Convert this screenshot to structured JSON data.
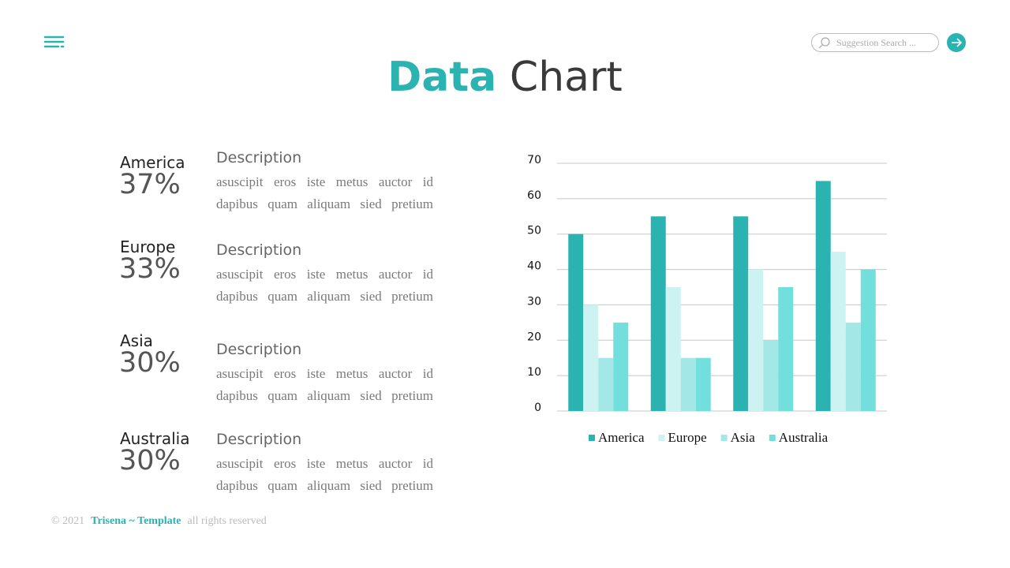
{
  "header": {
    "title_accent": "Data",
    "title_rest": "Chart",
    "search_placeholder": "Suggestion Search ..."
  },
  "stats": [
    {
      "name": "America",
      "value": "37%",
      "heading": "Description",
      "text": "asuscipit eros iste metus auctor id dapibus quam aliquam sied pretium"
    },
    {
      "name": "Europe",
      "value": "33%",
      "heading": "Description",
      "text": "asuscipit eros iste metus auctor id dapibus quam aliquam sied pretium"
    },
    {
      "name": "Asia",
      "value": "30%",
      "heading": "Description",
      "text": "asuscipit eros iste metus auctor id dapibus quam aliquam sied pretium"
    },
    {
      "name": "Australia",
      "value": "30%",
      "heading": "Description",
      "text": "asuscipit eros iste metus auctor id dapibus quam aliquam sied pretium"
    }
  ],
  "chart_data": {
    "type": "bar",
    "categories": [
      null,
      null,
      null,
      null
    ],
    "series": [
      {
        "name": "America",
        "color": "#2ab3b0",
        "values": [
          50,
          55,
          55,
          65
        ]
      },
      {
        "name": "Europe",
        "color": "#cdf2f2",
        "values": [
          30,
          35,
          40,
          45
        ]
      },
      {
        "name": "Asia",
        "color": "#a3e8e6",
        "values": [
          15,
          15,
          20,
          25
        ]
      },
      {
        "name": "Australia",
        "color": "#72dfdc",
        "values": [
          25,
          15,
          35,
          40
        ]
      }
    ],
    "ylim": [
      0,
      70
    ],
    "yticks": [
      0,
      10,
      20,
      30,
      40,
      50,
      60,
      70
    ],
    "grid": true,
    "legend": "bottom"
  },
  "footer": {
    "copyright": "© 2021",
    "brand": "Trisena ~ Template",
    "rights": "all rights reserved"
  }
}
